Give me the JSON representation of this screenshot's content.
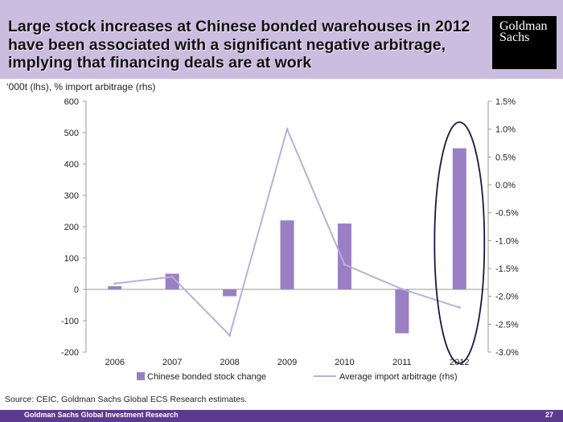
{
  "slide": {
    "title": "Large stock increases at Chinese bonded warehouses in 2012 have been associated with a significant negative arbitrage, implying that financing deals are at work",
    "logo_line1": "Goldman",
    "logo_line2": "Sachs",
    "units": "‘000t (lhs), % import arbitrage (rhs)",
    "source": "Source: CEIC, Goldman Sachs Global ECS Research estimates.",
    "footer": "Goldman Sachs Global Investment Research",
    "page": "27"
  },
  "colors": {
    "header_bg": "#cbbde0",
    "bar": "#9b7fc4",
    "line": "#b9aedb",
    "highlight": "#1a1640",
    "footer_bg": "#5c3a8e"
  },
  "chart_data": {
    "type": "bar",
    "categories": [
      "2006",
      "2007",
      "2008",
      "2009",
      "2010",
      "2011",
      "2012"
    ],
    "series": [
      {
        "name": "Chinese bonded stock change",
        "type": "bar",
        "axis": "left",
        "values": [
          10,
          50,
          -22,
          220,
          210,
          -140,
          450
        ]
      },
      {
        "name": "Average import arbitrage (rhs)",
        "type": "line",
        "axis": "right",
        "values": [
          -1.77,
          -1.65,
          -2.7,
          1.0,
          -1.43,
          -1.87,
          -2.2
        ]
      }
    ],
    "y_left": {
      "min": -200,
      "max": 600,
      "step": 100,
      "ticks": [
        "-200",
        "-100",
        "0",
        "100",
        "200",
        "300",
        "400",
        "500",
        "600"
      ]
    },
    "y_right": {
      "min": -3.0,
      "max": 1.5,
      "step": 0.5,
      "ticks": [
        "-3.0%",
        "-2.5%",
        "-2.0%",
        "-1.5%",
        "-1.0%",
        "-0.5%",
        "0.0%",
        "0.5%",
        "1.0%",
        "1.5%"
      ]
    },
    "highlight_category": "2012",
    "grid": false,
    "legend": "bottom"
  }
}
